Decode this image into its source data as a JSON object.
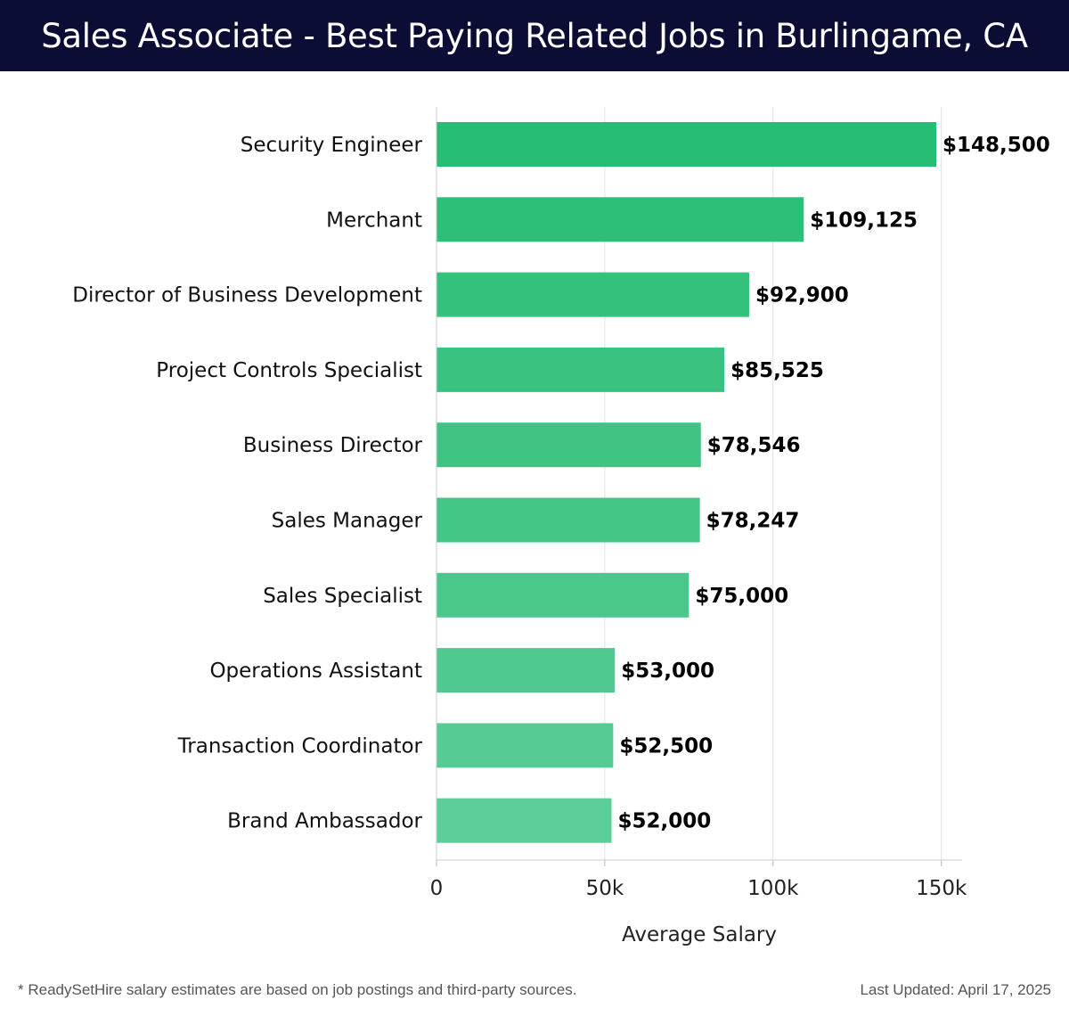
{
  "header": {
    "title": "Sales Associate - Best Paying Related Jobs in Burlingame, CA"
  },
  "chart_data": {
    "type": "bar",
    "orientation": "horizontal",
    "title": "Sales Associate - Best Paying Related Jobs in Burlingame, CA",
    "xlabel": "Average Salary",
    "ylabel": "",
    "xlim": [
      0,
      155000
    ],
    "xticks": [
      0,
      50000,
      100000,
      150000
    ],
    "xtick_labels": [
      "0",
      "50k",
      "100k",
      "150k"
    ],
    "grid": true,
    "categories": [
      "Security Engineer",
      "Merchant",
      "Director of Business Development",
      "Project Controls Specialist",
      "Business Director",
      "Sales Manager",
      "Sales Specialist",
      "Operations Assistant",
      "Transaction Coordinator",
      "Brand Ambassador"
    ],
    "values": [
      148500,
      109125,
      92900,
      85525,
      78546,
      78247,
      75000,
      53000,
      52500,
      52000
    ],
    "data_labels": [
      "$148,500",
      "$109,125",
      "$92,900",
      "$85,525",
      "$78,546",
      "$78,247",
      "$75,000",
      "$53,000",
      "$52,500",
      "$52,000"
    ],
    "colors": {
      "bar_top": "#27bd74",
      "bar_bottom": "#5ccd98",
      "grid": "#e2e2e2",
      "axis": "#cccccc"
    }
  },
  "footer": {
    "note": "* ReadySetHire salary estimates are based on job postings and third-party sources.",
    "updated": "Last Updated: April 17, 2025"
  }
}
